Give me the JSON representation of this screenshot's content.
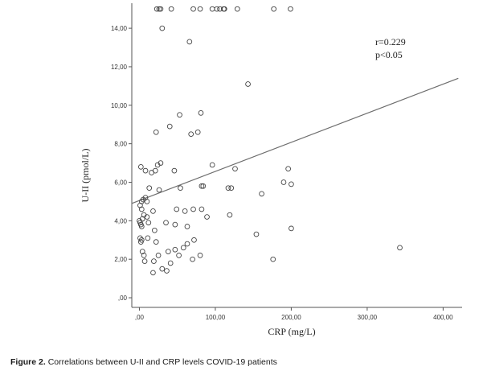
{
  "chart_data": {
    "type": "scatter",
    "xlabel": "CRP (mg/L)",
    "ylabel": "U-II (pmol/L)",
    "x_ticks": [
      {
        "value": 0,
        "label": ",00"
      },
      {
        "value": 100,
        "label": "100,00"
      },
      {
        "value": 200,
        "label": "200,00"
      },
      {
        "value": 300,
        "label": "300,00"
      },
      {
        "value": 400,
        "label": "400,00"
      }
    ],
    "y_ticks": [
      {
        "value": 0,
        "label": ",00"
      },
      {
        "value": 2,
        "label": "2,00"
      },
      {
        "value": 4,
        "label": "4,00"
      },
      {
        "value": 6,
        "label": "6,00"
      },
      {
        "value": 8,
        "label": "8,00"
      },
      {
        "value": 10,
        "label": "10,00"
      },
      {
        "value": 12,
        "label": "12,00"
      },
      {
        "value": 14,
        "label": "14,00"
      }
    ],
    "xlim": [
      -10,
      425
    ],
    "ylim": [
      -0.5,
      15.3
    ],
    "grid": false,
    "annotations": [
      "r=0.229",
      "p<0.05"
    ],
    "fit_line": {
      "x": [
        -10,
        420
      ],
      "y": [
        4.9,
        11.4
      ]
    },
    "points": [
      [
        23,
        15
      ],
      [
        26,
        15
      ],
      [
        28,
        15
      ],
      [
        42,
        15
      ],
      [
        71,
        15
      ],
      [
        80,
        15
      ],
      [
        96,
        15
      ],
      [
        102,
        15
      ],
      [
        106,
        15
      ],
      [
        111,
        15
      ],
      [
        112,
        15
      ],
      [
        129,
        15
      ],
      [
        177,
        15
      ],
      [
        199,
        15
      ],
      [
        30,
        14
      ],
      [
        66,
        13.3
      ],
      [
        143,
        11.1
      ],
      [
        53,
        9.5
      ],
      [
        81,
        9.6
      ],
      [
        40,
        8.9
      ],
      [
        22,
        8.6
      ],
      [
        68,
        8.5
      ],
      [
        77,
        8.6
      ],
      [
        2,
        6.8
      ],
      [
        8,
        6.6
      ],
      [
        16,
        6.5
      ],
      [
        21,
        6.6
      ],
      [
        24,
        6.9
      ],
      [
        28,
        7.0
      ],
      [
        46,
        6.6
      ],
      [
        96,
        6.9
      ],
      [
        126,
        6.7
      ],
      [
        196,
        6.7
      ],
      [
        54,
        5.7
      ],
      [
        82,
        5.8
      ],
      [
        84,
        5.8
      ],
      [
        117,
        5.7
      ],
      [
        121,
        5.7
      ],
      [
        161,
        5.4
      ],
      [
        190,
        6.0
      ],
      [
        200,
        5.9
      ],
      [
        26,
        5.6
      ],
      [
        13,
        5.7
      ],
      [
        3,
        5.0
      ],
      [
        5,
        5.1
      ],
      [
        8,
        5.2
      ],
      [
        10,
        5.0
      ],
      [
        1,
        4.8
      ],
      [
        3,
        4.6
      ],
      [
        6,
        4.3
      ],
      [
        10,
        4.2
      ],
      [
        18,
        4.5
      ],
      [
        49,
        4.6
      ],
      [
        60,
        4.5
      ],
      [
        71,
        4.6
      ],
      [
        82,
        4.6
      ],
      [
        89,
        4.2
      ],
      [
        119,
        4.3
      ],
      [
        200,
        3.6
      ],
      [
        154,
        3.3
      ],
      [
        0,
        4.0
      ],
      [
        1,
        3.9
      ],
      [
        2,
        3.8
      ],
      [
        3,
        3.7
      ],
      [
        4,
        4.1
      ],
      [
        12,
        3.9
      ],
      [
        20,
        3.5
      ],
      [
        35,
        3.9
      ],
      [
        47,
        3.8
      ],
      [
        63,
        3.7
      ],
      [
        1,
        3.1
      ],
      [
        2,
        2.9
      ],
      [
        3,
        3.0
      ],
      [
        11,
        3.1
      ],
      [
        22,
        2.9
      ],
      [
        58,
        2.6
      ],
      [
        63,
        2.8
      ],
      [
        72,
        3.0
      ],
      [
        4,
        2.4
      ],
      [
        6,
        2.2
      ],
      [
        7,
        1.9
      ],
      [
        19,
        1.9
      ],
      [
        25,
        2.2
      ],
      [
        38,
        2.4
      ],
      [
        47,
        2.5
      ],
      [
        52,
        2.2
      ],
      [
        70,
        2.0
      ],
      [
        80,
        2.2
      ],
      [
        41,
        1.8
      ],
      [
        30,
        1.5
      ],
      [
        18,
        1.3
      ],
      [
        36,
        1.4
      ],
      [
        176,
        2.0
      ],
      [
        343,
        2.6
      ]
    ]
  },
  "caption": {
    "label": "Figure 2.",
    "text": "Correlations between U-II and CRP levels COVID-19 patients"
  }
}
